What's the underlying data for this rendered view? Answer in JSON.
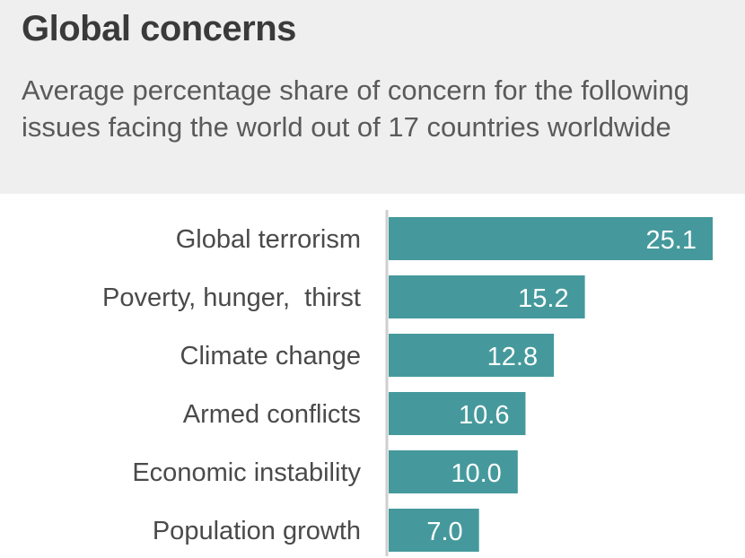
{
  "header": {
    "title": "Global concerns",
    "subtitle": "Average percentage share of concern for the following issues facing the world out of 17 countries worldwide"
  },
  "colors": {
    "bar": "#45999c",
    "axis": "#cfcfcf",
    "header_bg": "#efefef"
  },
  "chart_data": {
    "type": "bar",
    "orientation": "horizontal",
    "categories": [
      "Global terrorism",
      "Poverty, hunger,  thirst",
      "Climate change",
      "Armed conflicts",
      "Economic instability",
      "Population growth"
    ],
    "values": [
      25.1,
      15.2,
      12.8,
      10.6,
      10.0,
      7.0
    ],
    "value_labels": [
      "25.1",
      "15.2",
      "12.8",
      "10.6",
      "10.0",
      "7.0"
    ],
    "xlim": [
      0,
      25.1
    ],
    "grid": false,
    "legend": "none"
  }
}
